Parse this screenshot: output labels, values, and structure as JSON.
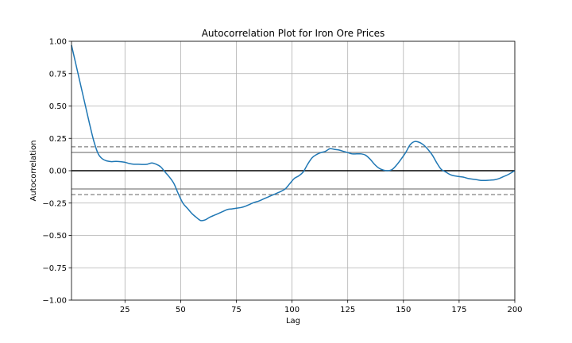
{
  "chart_data": {
    "type": "line",
    "title": "Autocorrelation Plot for Iron Ore Prices",
    "xlabel": "Lag",
    "ylabel": "Autocorrelation",
    "xlim": [
      1,
      200
    ],
    "ylim": [
      -1.0,
      1.0
    ],
    "xticks": [
      25,
      50,
      75,
      100,
      125,
      150,
      175,
      200
    ],
    "xtick_labels": [
      "25",
      "50",
      "75",
      "100",
      "125",
      "150",
      "175",
      "200"
    ],
    "yticks": [
      -1.0,
      -0.75,
      -0.5,
      -0.25,
      0.0,
      0.25,
      0.5,
      0.75,
      1.0
    ],
    "ytick_labels": [
      "−1.00",
      "−0.75",
      "−0.50",
      "−0.25",
      "0.00",
      "0.25",
      "0.50",
      "0.75",
      "1.00"
    ],
    "grid": true,
    "reference_lines": [
      {
        "y": 0.0,
        "style": "solid",
        "color": "#000000"
      },
      {
        "y": 0.141,
        "style": "solid",
        "color": "#808080"
      },
      {
        "y": -0.141,
        "style": "solid",
        "color": "#808080"
      },
      {
        "y": 0.185,
        "style": "dashed",
        "color": "#808080"
      },
      {
        "y": -0.185,
        "style": "dashed",
        "color": "#808080"
      }
    ],
    "series": [
      {
        "color": "#1f77b4",
        "x": [
          1,
          3,
          5,
          7,
          9,
          11,
          13,
          15,
          17,
          19,
          21,
          23,
          25,
          27,
          29,
          31,
          33,
          35,
          37,
          39,
          41,
          43,
          45,
          47,
          49,
          51,
          53,
          55,
          57,
          59,
          61,
          63,
          65,
          67,
          69,
          71,
          73,
          75,
          77,
          79,
          81,
          83,
          85,
          87,
          89,
          91,
          93,
          95,
          97,
          99,
          101,
          103,
          105,
          107,
          109,
          111,
          113,
          115,
          117,
          119,
          121,
          123,
          125,
          127,
          129,
          131,
          133,
          135,
          137,
          139,
          141,
          143,
          145,
          147,
          149,
          151,
          153,
          155,
          157,
          159,
          161,
          163,
          165,
          167,
          169,
          171,
          173,
          175,
          177,
          179,
          181,
          183,
          185,
          187,
          189,
          191,
          193,
          195,
          197,
          199,
          200
        ],
        "y": [
          0.97,
          0.82,
          0.67,
          0.52,
          0.37,
          0.23,
          0.13,
          0.09,
          0.075,
          0.07,
          0.072,
          0.07,
          0.065,
          0.055,
          0.05,
          0.05,
          0.048,
          0.05,
          0.06,
          0.05,
          0.03,
          -0.01,
          -0.05,
          -0.1,
          -0.18,
          -0.25,
          -0.29,
          -0.33,
          -0.36,
          -0.385,
          -0.38,
          -0.36,
          -0.345,
          -0.33,
          -0.315,
          -0.3,
          -0.295,
          -0.29,
          -0.285,
          -0.275,
          -0.26,
          -0.245,
          -0.235,
          -0.22,
          -0.205,
          -0.19,
          -0.175,
          -0.16,
          -0.14,
          -0.1,
          -0.06,
          -0.04,
          -0.01,
          0.05,
          0.1,
          0.125,
          0.14,
          0.15,
          0.17,
          0.165,
          0.16,
          0.15,
          0.14,
          0.13,
          0.13,
          0.13,
          0.12,
          0.09,
          0.05,
          0.02,
          0.005,
          0.0,
          0.01,
          0.045,
          0.09,
          0.14,
          0.2,
          0.225,
          0.22,
          0.2,
          0.165,
          0.12,
          0.06,
          0.01,
          -0.01,
          -0.03,
          -0.04,
          -0.045,
          -0.05,
          -0.06,
          -0.065,
          -0.07,
          -0.075,
          -0.075,
          -0.073,
          -0.07,
          -0.06,
          -0.045,
          -0.03,
          -0.01,
          0.0
        ]
      }
    ]
  }
}
